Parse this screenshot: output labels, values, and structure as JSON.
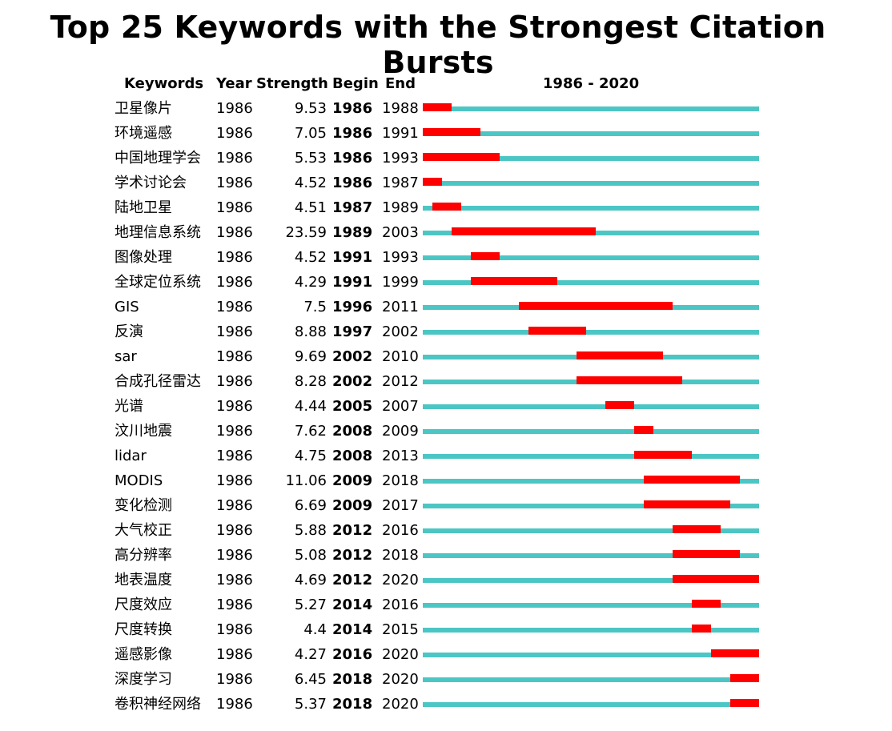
{
  "chart_data": {
    "type": "burst-timeline",
    "title": "Top 25 Keywords with the Strongest Citation Bursts",
    "columns": [
      "Keywords",
      "Year",
      "Strength",
      "Begin",
      "End"
    ],
    "range_label": "1986 - 2020",
    "range": [
      1986,
      2020
    ],
    "colors": {
      "track": "#4cc6c4",
      "burst": "#ff0000"
    },
    "rows": [
      {
        "keyword": "卫星像片",
        "year": 1986,
        "strength": 9.53,
        "begin": 1986,
        "end": 1988
      },
      {
        "keyword": "环境遥感",
        "year": 1986,
        "strength": 7.05,
        "begin": 1986,
        "end": 1991
      },
      {
        "keyword": "中国地理学会",
        "year": 1986,
        "strength": 5.53,
        "begin": 1986,
        "end": 1993
      },
      {
        "keyword": "学术讨论会",
        "year": 1986,
        "strength": 4.52,
        "begin": 1986,
        "end": 1987
      },
      {
        "keyword": "陆地卫星",
        "year": 1986,
        "strength": 4.51,
        "begin": 1987,
        "end": 1989
      },
      {
        "keyword": "地理信息系统",
        "year": 1986,
        "strength": 23.59,
        "begin": 1989,
        "end": 2003
      },
      {
        "keyword": "图像处理",
        "year": 1986,
        "strength": 4.52,
        "begin": 1991,
        "end": 1993
      },
      {
        "keyword": "全球定位系统",
        "year": 1986,
        "strength": 4.29,
        "begin": 1991,
        "end": 1999
      },
      {
        "keyword": "GIS",
        "year": 1986,
        "strength": 7.5,
        "begin": 1996,
        "end": 2011
      },
      {
        "keyword": "反演",
        "year": 1986,
        "strength": 8.88,
        "begin": 1997,
        "end": 2002
      },
      {
        "keyword": "sar",
        "year": 1986,
        "strength": 9.69,
        "begin": 2002,
        "end": 2010
      },
      {
        "keyword": "合成孔径雷达",
        "year": 1986,
        "strength": 8.28,
        "begin": 2002,
        "end": 2012
      },
      {
        "keyword": "光谱",
        "year": 1986,
        "strength": 4.44,
        "begin": 2005,
        "end": 2007
      },
      {
        "keyword": "汶川地震",
        "year": 1986,
        "strength": 7.62,
        "begin": 2008,
        "end": 2009
      },
      {
        "keyword": "lidar",
        "year": 1986,
        "strength": 4.75,
        "begin": 2008,
        "end": 2013
      },
      {
        "keyword": "MODIS",
        "year": 1986,
        "strength": 11.06,
        "begin": 2009,
        "end": 2018
      },
      {
        "keyword": "变化检测",
        "year": 1986,
        "strength": 6.69,
        "begin": 2009,
        "end": 2017
      },
      {
        "keyword": "大气校正",
        "year": 1986,
        "strength": 5.88,
        "begin": 2012,
        "end": 2016
      },
      {
        "keyword": "高分辨率",
        "year": 1986,
        "strength": 5.08,
        "begin": 2012,
        "end": 2018
      },
      {
        "keyword": "地表温度",
        "year": 1986,
        "strength": 4.69,
        "begin": 2012,
        "end": 2020
      },
      {
        "keyword": "尺度效应",
        "year": 1986,
        "strength": 5.27,
        "begin": 2014,
        "end": 2016
      },
      {
        "keyword": "尺度转换",
        "year": 1986,
        "strength": 4.4,
        "begin": 2014,
        "end": 2015
      },
      {
        "keyword": "遥感影像",
        "year": 1986,
        "strength": 4.27,
        "begin": 2016,
        "end": 2020
      },
      {
        "keyword": "深度学习",
        "year": 1986,
        "strength": 6.45,
        "begin": 2018,
        "end": 2020
      },
      {
        "keyword": "卷积神经网络",
        "year": 1986,
        "strength": 5.37,
        "begin": 2018,
        "end": 2020
      }
    ]
  }
}
